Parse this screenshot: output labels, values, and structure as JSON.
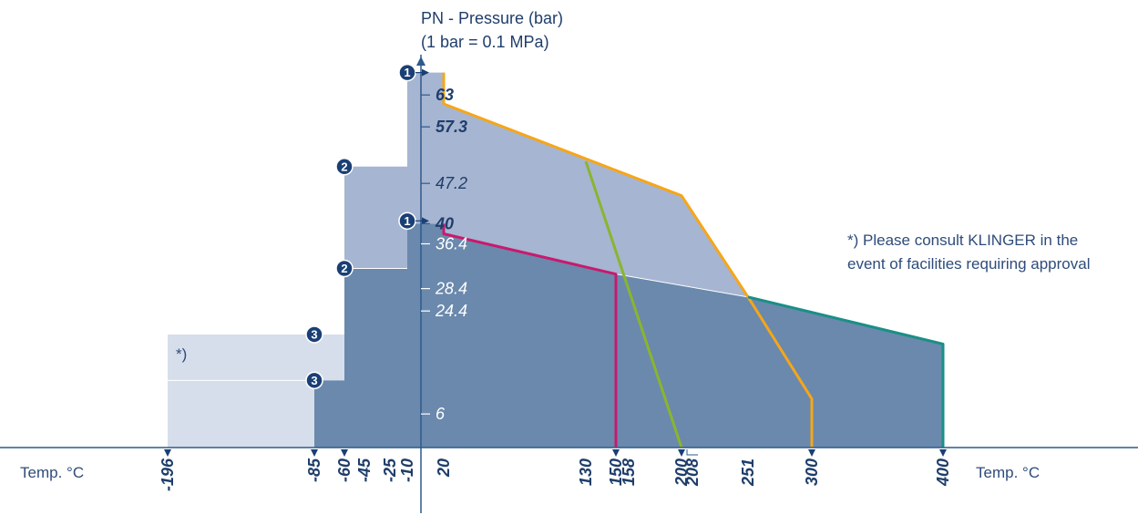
{
  "chart_data": {
    "type": "area",
    "y_axis_title": "PN - Pressure (bar)",
    "y_axis_subtitle": "(1 bar = 0.1 MPa)",
    "x_axis_label_left": "Temp. °C",
    "x_axis_label_right": "Temp. °C",
    "note_line1": "*) Please consult KLINGER in the",
    "note_line2": "event of facilities requiring approval",
    "region_note": "*)",
    "x_ticks": [
      "-196",
      "-85",
      "-60",
      "-45",
      "-25",
      "-10",
      "20",
      "130",
      "150",
      "158",
      "200",
      "208",
      "251",
      "300",
      "400"
    ],
    "arrow_ticks": [
      "-196",
      "-85",
      "-60",
      "150",
      "200",
      "300",
      "400"
    ],
    "y_ticks": [
      {
        "label": "63",
        "value": 63,
        "style": "bold-dark"
      },
      {
        "label": "57.3",
        "value": 57.3,
        "style": "bold-dark"
      },
      {
        "label": "47.2",
        "value": 47.2,
        "style": "dark"
      },
      {
        "label": "40",
        "value": 40,
        "style": "bold-dark"
      },
      {
        "label": "36.4",
        "value": 36.4,
        "style": "light"
      },
      {
        "label": "28.4",
        "value": 28.4,
        "style": "light"
      },
      {
        "label": "24.4",
        "value": 24.4,
        "style": "light"
      },
      {
        "label": "6",
        "value": 6,
        "style": "light"
      }
    ],
    "regions": [
      {
        "name": "dark-area",
        "color": "#6a89ad",
        "points": [
          [
            -85,
            0
          ],
          [
            -85,
            12
          ],
          [
            -60,
            12
          ],
          [
            -60,
            32
          ],
          [
            -10,
            32
          ],
          [
            -10,
            40
          ],
          [
            20,
            40
          ],
          [
            20,
            38.2
          ],
          [
            150,
            31
          ],
          [
            251,
            26.9
          ],
          [
            400,
            18.5
          ],
          [
            400,
            0
          ]
        ]
      },
      {
        "name": "medium-area",
        "color": "#a6b5d1",
        "points": [
          [
            -60,
            32
          ],
          [
            -60,
            50.2
          ],
          [
            -10,
            50.2
          ],
          [
            -10,
            67
          ],
          [
            20,
            67
          ],
          [
            20,
            61.4
          ],
          [
            200,
            45
          ],
          [
            251,
            26.9
          ],
          [
            150,
            31
          ],
          [
            20,
            38.2
          ],
          [
            20,
            40
          ],
          [
            -10,
            40
          ],
          [
            -10,
            32
          ]
        ]
      },
      {
        "name": "light-area",
        "color": "#d7deeb",
        "points": [
          [
            -196,
            0
          ],
          [
            -196,
            20.2
          ],
          [
            -60,
            20.2
          ],
          [
            -60,
            12
          ],
          [
            -85,
            12
          ],
          [
            -85,
            0
          ]
        ]
      }
    ],
    "series": [
      {
        "color": "#f6a618",
        "values": [
          [
            20,
            67
          ],
          [
            20,
            61.4
          ],
          [
            200,
            45
          ],
          [
            251,
            26.9
          ],
          [
            300,
            8.7
          ],
          [
            300,
            0
          ]
        ]
      },
      {
        "color": "#c9196e",
        "values": [
          [
            20,
            40
          ],
          [
            20,
            38.2
          ],
          [
            150,
            31
          ],
          [
            150,
            0
          ]
        ]
      },
      {
        "color": "#8ab52e",
        "values": [
          [
            130,
            51.1
          ],
          [
            200,
            0
          ]
        ]
      },
      {
        "color": "#1a8f86",
        "values": [
          [
            251,
            26.9
          ],
          [
            400,
            18.5
          ],
          [
            400,
            0
          ]
        ]
      }
    ],
    "badges": [
      {
        "label": "1",
        "t": -10,
        "p": 67
      },
      {
        "label": "1",
        "t": -10,
        "p": 40.5
      },
      {
        "label": "2",
        "t": -60,
        "p": 50.2
      },
      {
        "label": "2",
        "t": -60,
        "p": 32
      },
      {
        "label": "3",
        "t": -85,
        "p": 20.2
      },
      {
        "label": "3",
        "t": -85,
        "p": 12
      }
    ],
    "ylim": [
      0,
      67
    ],
    "xlim": [
      -196,
      400
    ],
    "grid": false,
    "legend": "none",
    "colors": {
      "axis": "#2e5a8c",
      "badge": "#1a3f75",
      "dark_text": "#1f3e6b",
      "light_text": "#ffffff"
    }
  }
}
